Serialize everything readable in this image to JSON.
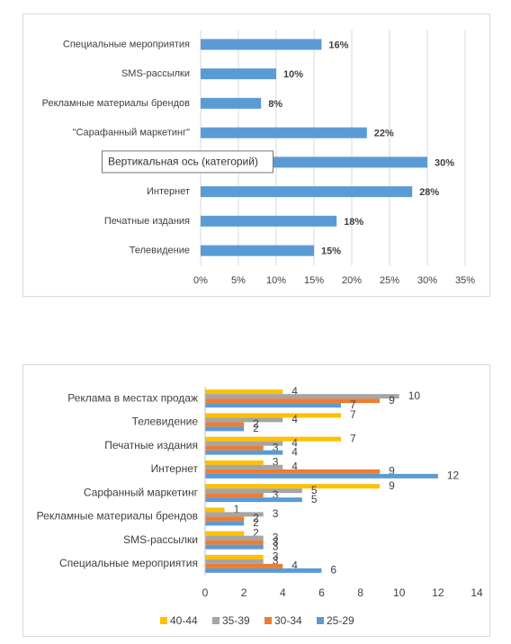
{
  "chart_data": [
    {
      "type": "bar",
      "categories": [
        "Специальные мероприятия",
        "SMS-рассылки",
        "Рекламные материалы брендов",
        "\"Сарафанный маркетинг\"",
        null,
        "Интернет",
        "Печатные издания",
        "Телевидение"
      ],
      "values": [
        16,
        10,
        8,
        22,
        30,
        28,
        18,
        15
      ],
      "value_labels": [
        "16%",
        "10%",
        "8%",
        "22%",
        "30%",
        "28%",
        "18%",
        "15%"
      ],
      "color": "#5b9bd5",
      "xlim": [
        0,
        35
      ],
      "xticks": [
        {
          "value": 0,
          "label": "0%"
        },
        {
          "value": 5,
          "label": "5%"
        },
        {
          "value": 10,
          "label": "10%"
        },
        {
          "value": 15,
          "label": "15%"
        },
        {
          "value": 20,
          "label": "20%"
        },
        {
          "value": 25,
          "label": "25%"
        },
        {
          "value": 30,
          "label": "30%"
        },
        {
          "value": 35,
          "label": "35%"
        }
      ],
      "grid": true,
      "annotation": "Вертикальная ось (категорий)"
    },
    {
      "type": "bar",
      "categories": [
        "Реклама в местах продаж",
        "Телевидение",
        "Печатные издания",
        "Интернет",
        "Сарфанный маркетинг",
        "Рекламные материалы брендов",
        "SMS-рассылки",
        "Специальные мероприятия"
      ],
      "series": [
        {
          "name": "40-44",
          "color": "#ffc000",
          "values": [
            4,
            7,
            7,
            3,
            9,
            1,
            2,
            3
          ]
        },
        {
          "name": "35-39",
          "color": "#a5a5a5",
          "values": [
            10,
            4,
            4,
            4,
            5,
            3,
            3,
            3
          ]
        },
        {
          "name": "30-34",
          "color": "#ed7d31",
          "values": [
            9,
            2,
            3,
            9,
            3,
            2,
            3,
            4
          ]
        },
        {
          "name": "25-29",
          "color": "#5b9bd5",
          "values": [
            7,
            2,
            4,
            12,
            5,
            2,
            3,
            6
          ]
        }
      ],
      "xlim": [
        0,
        14
      ],
      "xticks": [
        0,
        2,
        4,
        6,
        8,
        10,
        12,
        14
      ],
      "grid": false,
      "legend": "bottom"
    }
  ]
}
